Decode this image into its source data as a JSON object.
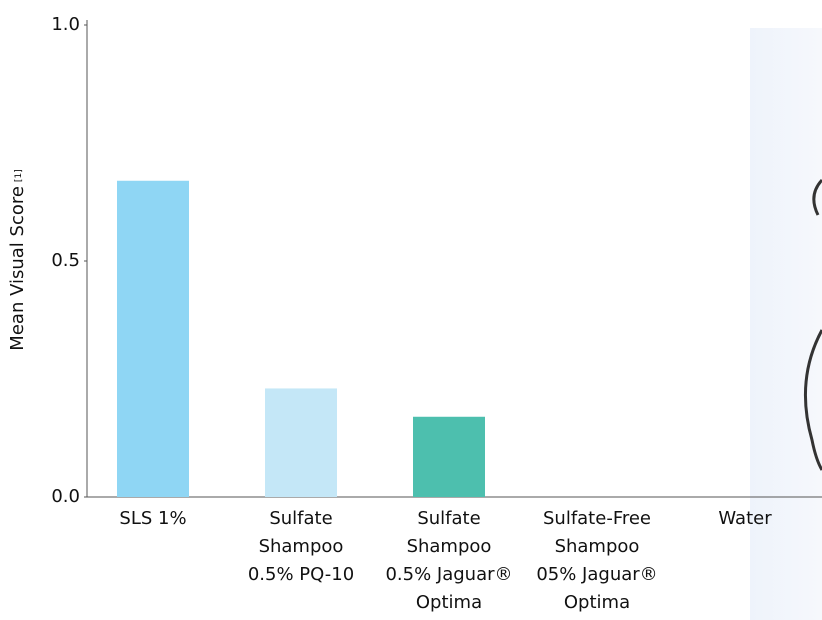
{
  "chart_data": {
    "type": "bar",
    "ylabel": "Mean Visual Score",
    "ylabel_note": "[1]",
    "categories": [
      [
        "SLS 1%"
      ],
      [
        "Sulfate",
        "Shampoo",
        "0.5% PQ-10"
      ],
      [
        "Sulfate",
        "Shampoo",
        "0.5% Jaguar®",
        "Optima"
      ],
      [
        "Sulfate-Free",
        "Shampoo",
        "05% Jaguar®",
        "Optima"
      ],
      [
        "Water"
      ]
    ],
    "values": [
      0.67,
      0.23,
      0.17,
      0,
      0
    ],
    "colors": [
      "#8fd6f4",
      "#c4e7f7",
      "#4dbfae",
      "#8fd6f4",
      "#8fd6f4"
    ],
    "ylim": [
      0,
      1
    ],
    "yticks": [
      {
        "value": 0,
        "label": "0.0"
      },
      0.5,
      {
        "value": 1,
        "label": "1.0"
      }
    ],
    "grid": false
  }
}
